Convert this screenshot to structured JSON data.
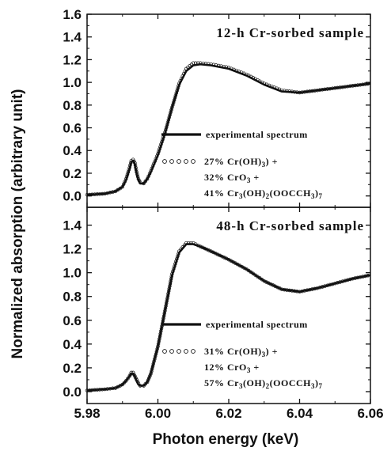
{
  "chart_data": {
    "type": "line",
    "xlabel": "Photon energy (keV)",
    "ylabel": "Normalized absorption (arbitrary unit)",
    "xlim": [
      5.98,
      6.06
    ],
    "x_ticks": [
      "5.98",
      "6.00",
      "6.02",
      "6.04",
      "6.06"
    ],
    "panels": [
      {
        "title": "12-h Cr-sorbed sample",
        "ylim": [
          -0.1,
          1.6
        ],
        "y_ticks": [
          "0.0",
          "0.2",
          "0.4",
          "0.6",
          "0.8",
          "1.0",
          "1.2",
          "1.4",
          "1.6"
        ],
        "legend": {
          "line": "experimental spectrum",
          "fit": [
            {
              "pct": "27%",
              "parts": [
                [
                  "Cr(OH)",
                  ""
                ],
                [
                  "3",
                  "sub"
                ],
                [
                  ") +",
                  ""
                ]
              ]
            },
            {
              "pct": "32%",
              "parts": [
                [
                  "CrO",
                  ""
                ],
                [
                  "3",
                  "sub"
                ],
                [
                  " +",
                  ""
                ]
              ]
            },
            {
              "pct": "41%",
              "parts": [
                [
                  "Cr",
                  ""
                ],
                [
                  "3",
                  "sub"
                ],
                [
                  "(OH)",
                  ""
                ],
                [
                  "2",
                  "sub"
                ],
                [
                  "(OOCCH",
                  ""
                ],
                [
                  "3",
                  "sub"
                ],
                [
                  ")",
                  ""
                ],
                [
                  "7",
                  "sub"
                ]
              ]
            }
          ]
        },
        "series": [
          {
            "name": "experimental spectrum",
            "style": "line",
            "x": [
              5.98,
              5.985,
              5.988,
              5.99,
              5.991,
              5.992,
              5.9925,
              5.993,
              5.9935,
              5.994,
              5.9945,
              5.995,
              5.996,
              5.997,
              5.998,
              6.0,
              6.002,
              6.004,
              6.006,
              6.008,
              6.01,
              6.012,
              6.015,
              6.02,
              6.025,
              6.03,
              6.035,
              6.04,
              6.045,
              6.05,
              6.055,
              6.06
            ],
            "y": [
              0.01,
              0.02,
              0.04,
              0.08,
              0.14,
              0.24,
              0.3,
              0.31,
              0.28,
              0.2,
              0.14,
              0.11,
              0.11,
              0.15,
              0.21,
              0.36,
              0.55,
              0.78,
              0.98,
              1.1,
              1.15,
              1.16,
              1.15,
              1.12,
              1.06,
              0.98,
              0.92,
              0.91,
              0.93,
              0.95,
              0.97,
              0.99
            ]
          },
          {
            "name": "fit",
            "style": "circles",
            "x": [
              5.98,
              5.985,
              5.988,
              5.99,
              5.991,
              5.992,
              5.9925,
              5.993,
              5.9935,
              5.994,
              5.9945,
              5.995,
              5.996,
              5.997,
              5.998,
              6.0,
              6.002,
              6.004,
              6.006,
              6.008,
              6.01,
              6.012,
              6.015,
              6.02,
              6.025,
              6.03,
              6.035,
              6.04,
              6.045,
              6.05,
              6.055,
              6.06
            ],
            "y": [
              0.01,
              0.02,
              0.04,
              0.08,
              0.15,
              0.25,
              0.31,
              0.32,
              0.29,
              0.21,
              0.15,
              0.12,
              0.11,
              0.15,
              0.22,
              0.37,
              0.56,
              0.78,
              0.99,
              1.12,
              1.17,
              1.17,
              1.16,
              1.13,
              1.07,
              0.99,
              0.93,
              0.91,
              0.93,
              0.95,
              0.97,
              0.99
            ]
          }
        ]
      },
      {
        "title": "48-h Cr-sorbed sample",
        "ylim": [
          -0.1,
          1.55
        ],
        "y_ticks": [
          "0.0",
          "0.2",
          "0.4",
          "0.6",
          "0.8",
          "1.0",
          "1.2",
          "1.4"
        ],
        "legend": {
          "line": "experimental spectrum",
          "fit": [
            {
              "pct": "31%",
              "parts": [
                [
                  "Cr(OH)",
                  ""
                ],
                [
                  "3",
                  "sub"
                ],
                [
                  ") +",
                  ""
                ]
              ]
            },
            {
              "pct": "12%",
              "parts": [
                [
                  "CrO",
                  ""
                ],
                [
                  "3",
                  "sub"
                ],
                [
                  " +",
                  ""
                ]
              ]
            },
            {
              "pct": "57%",
              "parts": [
                [
                  "Cr",
                  ""
                ],
                [
                  "3",
                  "sub"
                ],
                [
                  "(OH)",
                  ""
                ],
                [
                  "2",
                  "sub"
                ],
                [
                  "(OOCCH",
                  ""
                ],
                [
                  "3",
                  "sub"
                ],
                [
                  ")",
                  ""
                ],
                [
                  "7",
                  "sub"
                ]
              ]
            }
          ]
        },
        "series": [
          {
            "name": "experimental spectrum",
            "style": "line",
            "x": [
              5.98,
              5.985,
              5.988,
              5.99,
              5.991,
              5.992,
              5.9925,
              5.993,
              5.9935,
              5.994,
              5.9945,
              5.995,
              5.996,
              5.997,
              5.998,
              6.0,
              6.002,
              6.004,
              6.006,
              6.008,
              6.01,
              6.012,
              6.015,
              6.02,
              6.025,
              6.03,
              6.035,
              6.04,
              6.045,
              6.05,
              6.055,
              6.06
            ],
            "y": [
              0.01,
              0.02,
              0.03,
              0.06,
              0.09,
              0.13,
              0.15,
              0.15,
              0.13,
              0.09,
              0.06,
              0.05,
              0.05,
              0.08,
              0.15,
              0.38,
              0.68,
              0.98,
              1.17,
              1.24,
              1.24,
              1.22,
              1.18,
              1.11,
              1.03,
              0.93,
              0.86,
              0.84,
              0.87,
              0.91,
              0.95,
              0.98
            ]
          },
          {
            "name": "fit",
            "style": "circles",
            "x": [
              5.98,
              5.985,
              5.988,
              5.99,
              5.991,
              5.992,
              5.9925,
              5.993,
              5.9935,
              5.994,
              5.9945,
              5.995,
              5.996,
              5.997,
              5.998,
              6.0,
              6.002,
              6.004,
              6.006,
              6.008,
              6.01,
              6.012,
              6.015,
              6.02,
              6.025,
              6.03,
              6.035,
              6.04,
              6.045,
              6.05,
              6.055,
              6.06
            ],
            "y": [
              0.01,
              0.02,
              0.03,
              0.06,
              0.09,
              0.13,
              0.16,
              0.16,
              0.13,
              0.1,
              0.07,
              0.05,
              0.05,
              0.08,
              0.15,
              0.38,
              0.68,
              0.99,
              1.18,
              1.25,
              1.25,
              1.22,
              1.18,
              1.11,
              1.03,
              0.93,
              0.86,
              0.84,
              0.87,
              0.91,
              0.95,
              0.98
            ]
          }
        ]
      }
    ]
  }
}
